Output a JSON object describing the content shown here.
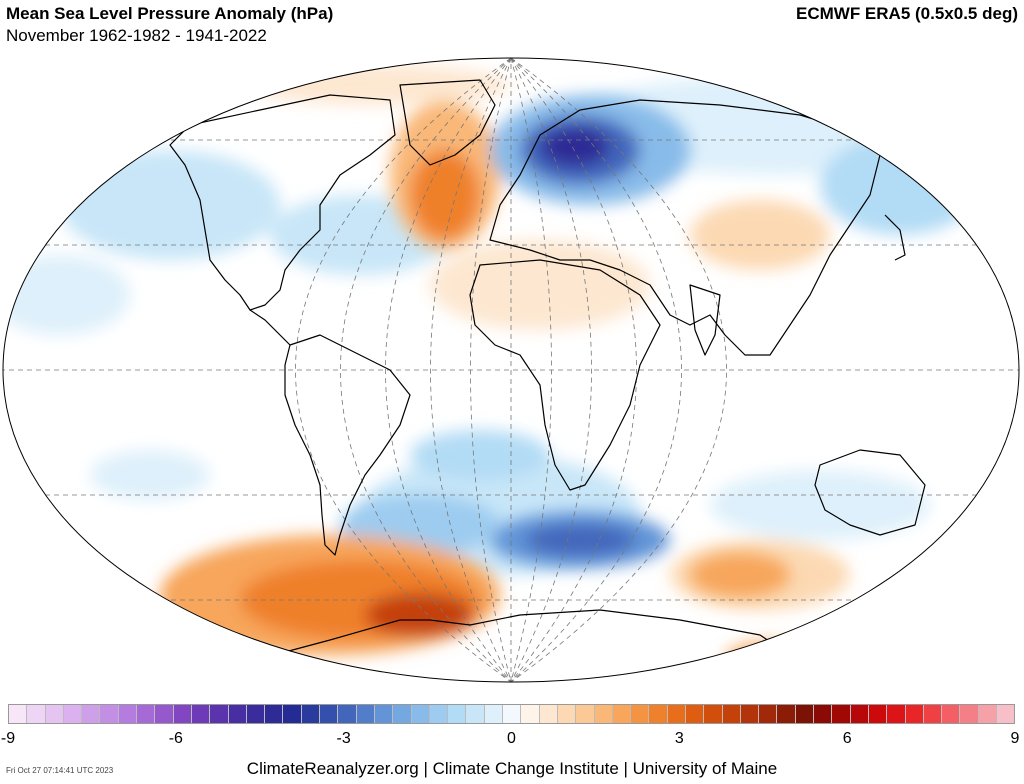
{
  "header": {
    "title": "Mean Sea Level Pressure Anomaly (hPa)",
    "subtitle": "November 1962-1982 - 1941-2022",
    "source": "ECMWF ERA5 (0.5x0.5 deg)"
  },
  "colorbar": {
    "min": -9,
    "max": 9,
    "tick_labels": [
      "-9",
      "-6",
      "-3",
      "0",
      "3",
      "6",
      "9"
    ],
    "tick_values": [
      -9,
      -6,
      -3,
      0,
      3,
      6,
      9
    ],
    "colors": [
      "#f7e6f7",
      "#efd5f5",
      "#e6c4f2",
      "#dbb2ef",
      "#cfa0ea",
      "#c28fe4",
      "#b47cde",
      "#a56ad6",
      "#9658cd",
      "#8346c2",
      "#6d3ab8",
      "#5a33ad",
      "#472ea3",
      "#3a2c9c",
      "#2e2a96",
      "#242b94",
      "#2a3b9e",
      "#3550ac",
      "#4266bc",
      "#517dcb",
      "#6294d7",
      "#74a8e1",
      "#88bbe9",
      "#9dccf0",
      "#b2dbf5",
      "#c8e6f8",
      "#def0fb",
      "#f2f8fd",
      "#fef4ea",
      "#fde7d0",
      "#fcd9b3",
      "#fbc996",
      "#f9b878",
      "#f7a65c",
      "#f49342",
      "#ef802c",
      "#e86e1b",
      "#de5d10",
      "#d24e0c",
      "#c4410a",
      "#b3340a",
      "#a12809",
      "#8d1c07",
      "#7c1206",
      "#8b0a05",
      "#a00806",
      "#b70708",
      "#cc090b",
      "#dc1317",
      "#e82628",
      "#ef4044",
      "#f35f64",
      "#f57f86",
      "#f6a0a8",
      "#f7c0c8"
    ]
  },
  "map": {
    "projection": "Robinson",
    "highlights": [
      "positive anomaly over Greenland",
      "negative anomaly over Scandinavia",
      "positive anomaly over Southern Ocean near Antarctic Peninsula",
      "negative anomaly over South Atlantic and southern Indian Ocean"
    ]
  },
  "footer": {
    "timestamp": "Fri Oct 27 07:14:41 UTC 2023",
    "credit": "ClimateReanalyzer.org | Climate Change Institute | University of Maine"
  }
}
